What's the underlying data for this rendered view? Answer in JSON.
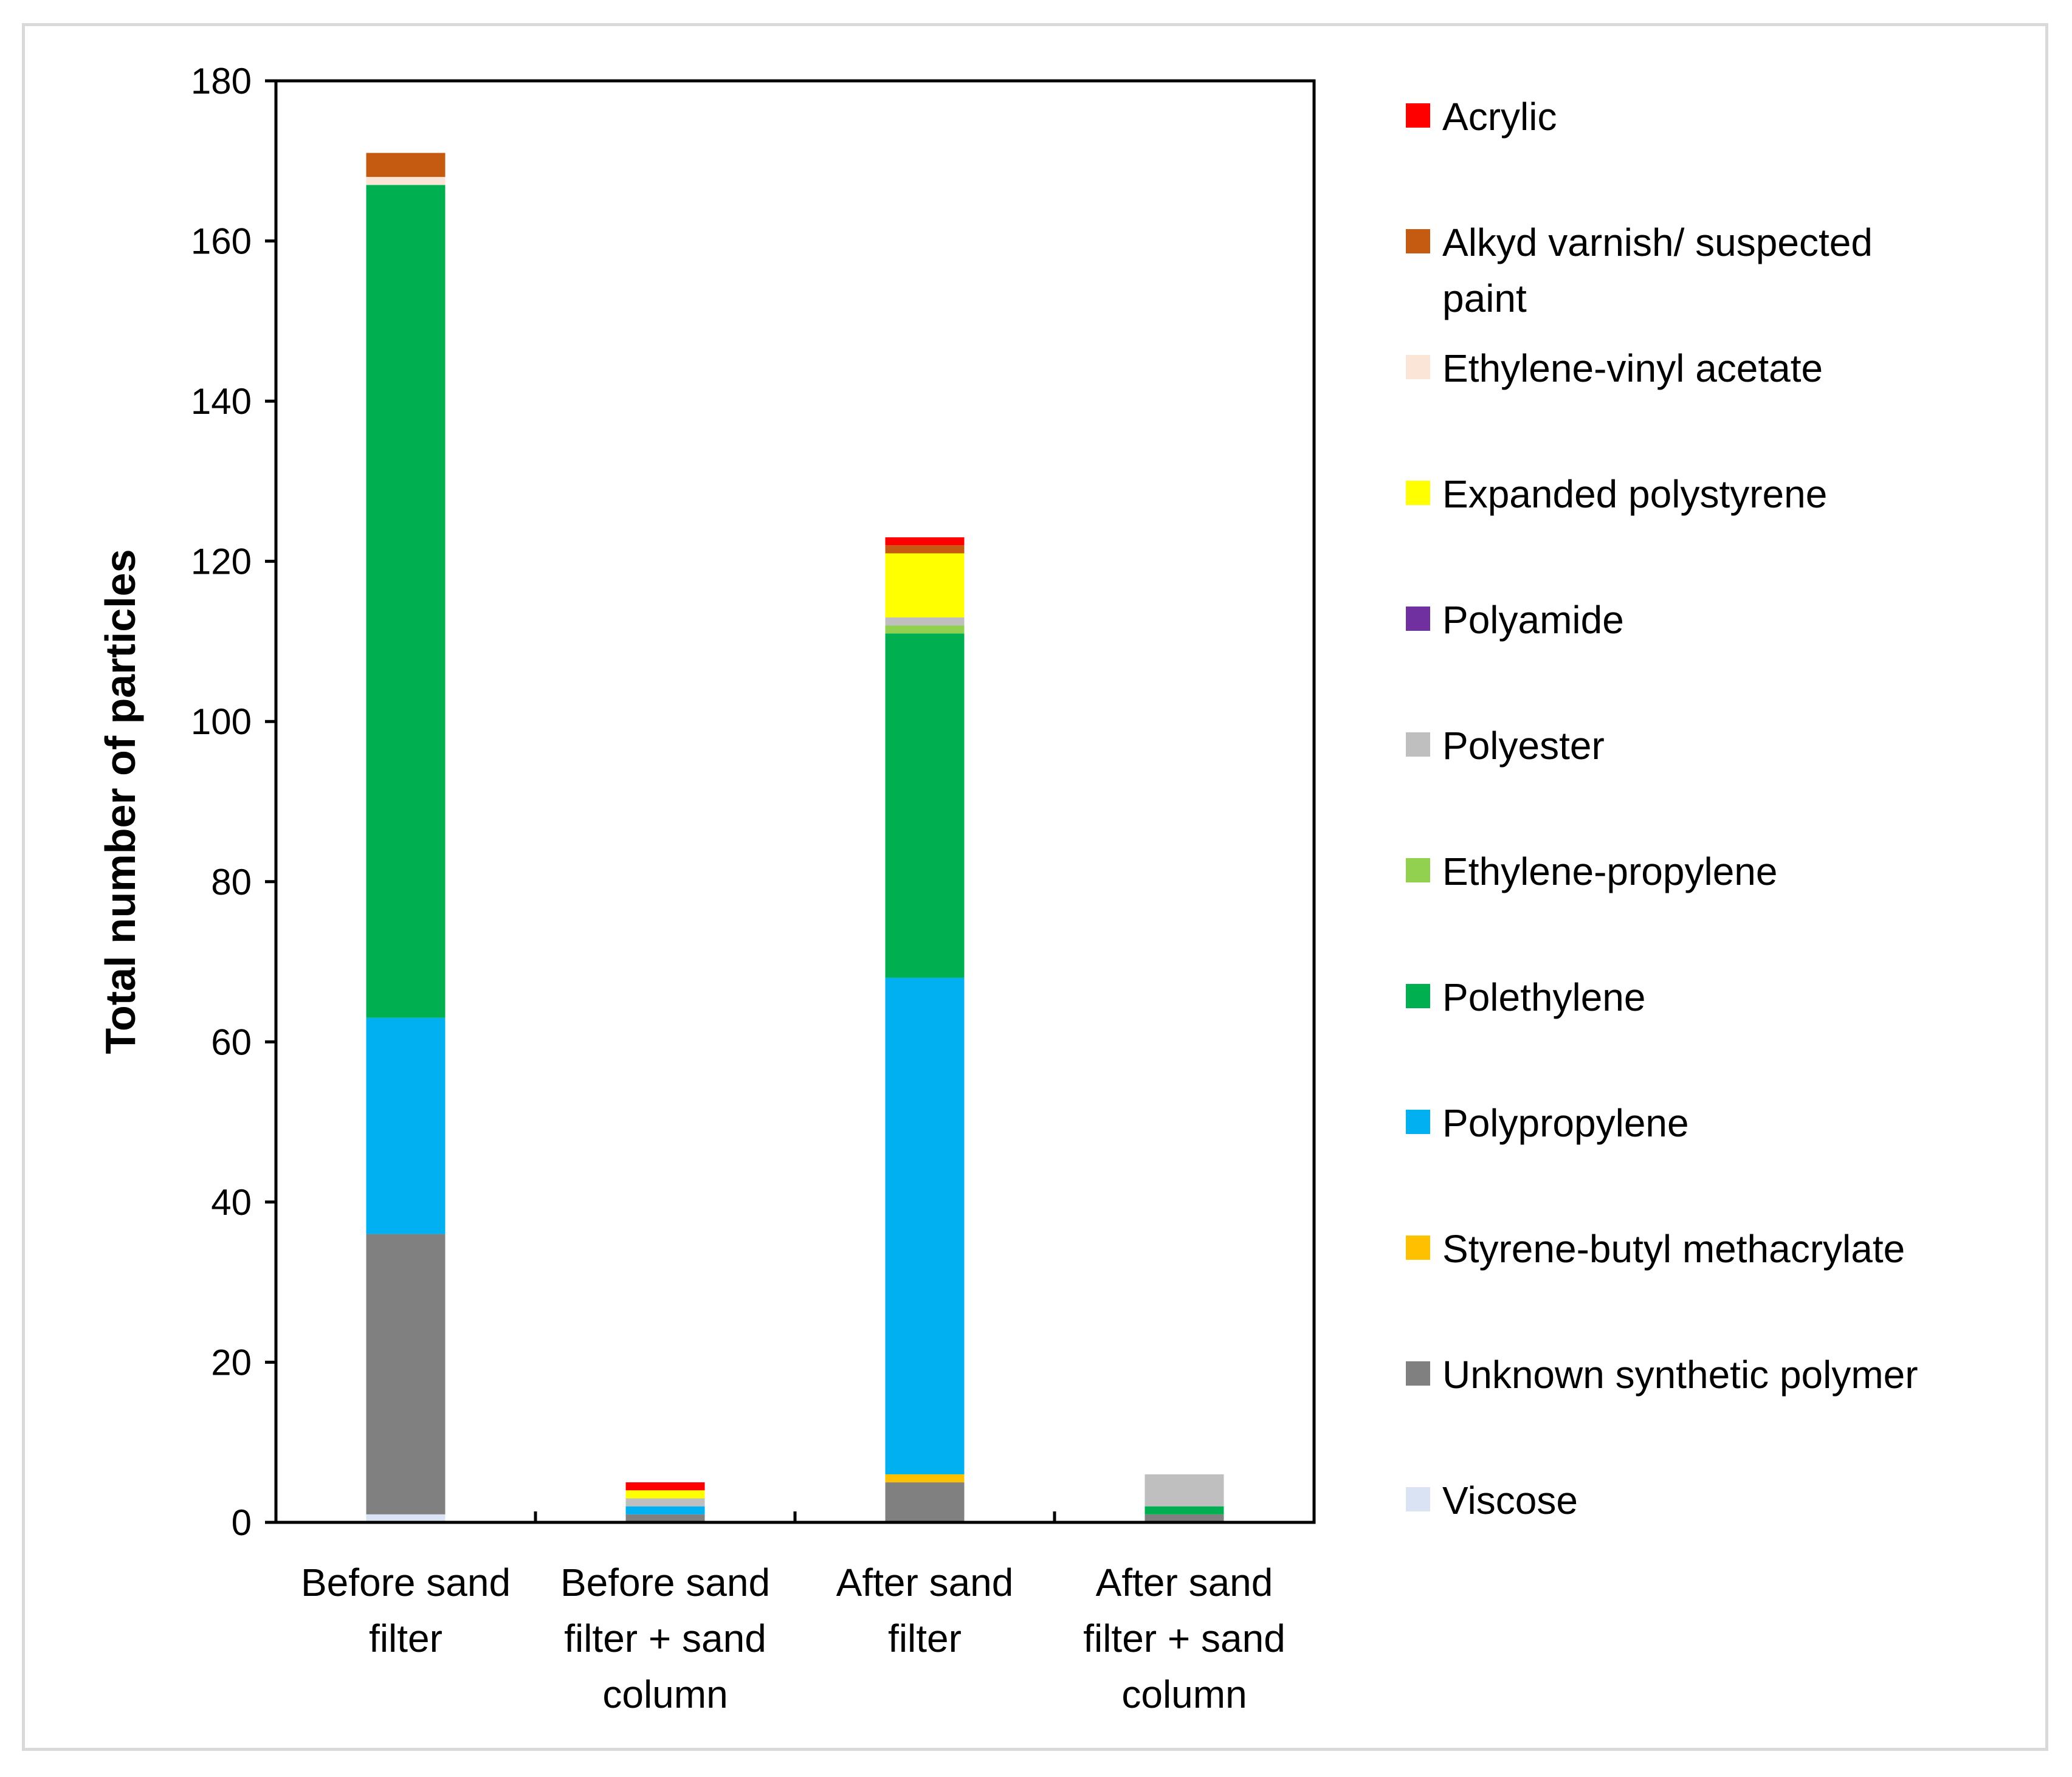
{
  "chart_data": {
    "type": "bar",
    "stacked": true,
    "title": "",
    "xlabel": "",
    "ylabel": "Total number of particles",
    "ylim": [
      0,
      180
    ],
    "yticks": [
      0,
      20,
      40,
      60,
      80,
      100,
      120,
      140,
      160,
      180
    ],
    "grid": false,
    "legend_position": "right",
    "categories": [
      [
        "Before sand",
        "filter"
      ],
      [
        "Before sand",
        "filter + sand",
        "column"
      ],
      [
        "After sand",
        "filter"
      ],
      [
        "After sand",
        "filter + sand",
        "column"
      ]
    ],
    "series": [
      {
        "name": "Viscose",
        "color": "#dae3f3",
        "values": [
          1,
          0,
          0,
          0
        ]
      },
      {
        "name": "Unknown synthetic polymer",
        "color": "#808080",
        "values": [
          35,
          1,
          5,
          1
        ]
      },
      {
        "name": "Styrene-butyl methacrylate",
        "color": "#ffc000",
        "values": [
          0,
          0,
          1,
          0
        ]
      },
      {
        "name": "Polypropylene",
        "color": "#00b0f0",
        "values": [
          27,
          1,
          62,
          0
        ]
      },
      {
        "name": "Polethylene",
        "color": "#00b050",
        "values": [
          104,
          0,
          43,
          1
        ]
      },
      {
        "name": "Ethylene-propylene",
        "color": "#92d050",
        "values": [
          0,
          0,
          1,
          0
        ]
      },
      {
        "name": "Polyester",
        "color": "#bfbfbf",
        "values": [
          0,
          1,
          1,
          4
        ]
      },
      {
        "name": "Polyamide",
        "color": "#7030a0",
        "values": [
          0,
          0,
          0,
          0
        ]
      },
      {
        "name": "Expanded polystyrene",
        "color": "#ffff00",
        "values": [
          0,
          1,
          8,
          0
        ]
      },
      {
        "name": "Ethylene-vinyl acetate",
        "color": "#fbe5d6",
        "values": [
          1,
          0,
          0,
          0
        ]
      },
      {
        "name": "Alkyd varnish/ suspected paint",
        "color": "#c55a11",
        "values": [
          3,
          0,
          1,
          0
        ]
      },
      {
        "name": "Acrylic",
        "color": "#ff0000",
        "values": [
          0,
          1,
          1,
          0
        ]
      }
    ],
    "legend_order": [
      [
        "Acrylic"
      ],
      [
        "Alkyd varnish/ suspected",
        "paint"
      ],
      [
        "Ethylene-vinyl acetate"
      ],
      [
        "Expanded polystyrene"
      ],
      [
        "Polyamide"
      ],
      [
        "Polyester"
      ],
      [
        "Ethylene-propylene"
      ],
      [
        "Polethylene"
      ],
      [
        "Polypropylene"
      ],
      [
        "Styrene-butyl methacrylate"
      ],
      [
        "Unknown synthetic polymer"
      ],
      [
        "Viscose"
      ]
    ]
  }
}
